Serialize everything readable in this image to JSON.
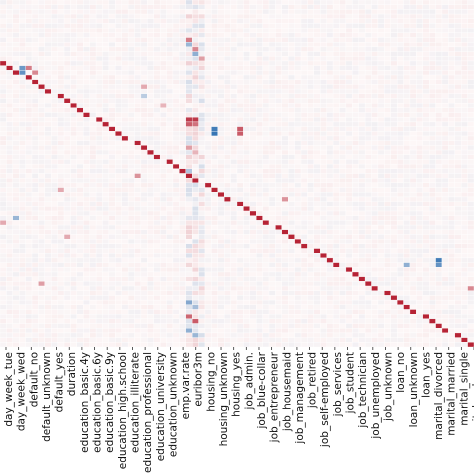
{
  "chart_data": {
    "type": "heatmap",
    "x_tick_labels": [
      "day_week_tue",
      "day_week_wed",
      "default_no",
      "default_unknown",
      "default_yes",
      "duration",
      "education_basic.4y",
      "education_basic.6y",
      "education_basic.9y",
      "education_high.school",
      "education_illiterate",
      "education_professional",
      "education_university",
      "education_unknown",
      "emp.var.rate",
      "euribor3m",
      "housing_no",
      "housing_unknown",
      "housing_yes",
      "job_admin.",
      "job_blue-collar",
      "job_entrepreneur",
      "job_housemaid",
      "job_management",
      "job_retired",
      "job_self-employed",
      "job_services",
      "job_student",
      "job_technician",
      "job_unemployed",
      "job_unknown",
      "loan_no",
      "loan_unknown",
      "loan_yes",
      "marital_divorced",
      "marital_married",
      "marital_single",
      "marital_unknown"
    ],
    "colors": {
      "positive": "#b2182b",
      "negative": "#2166ac",
      "neutral": "#fdf5f5",
      "grid": "#ffffff"
    },
    "value_range": [
      -1,
      1
    ]
  }
}
